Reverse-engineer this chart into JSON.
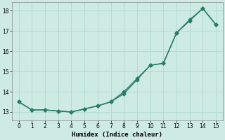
{
  "line1_x": [
    0,
    1,
    2,
    3,
    4,
    5,
    6,
    7,
    8,
    9,
    10,
    11,
    12,
    13,
    14,
    15
  ],
  "line1_y": [
    13.5,
    13.1,
    13.1,
    13.05,
    13.0,
    13.15,
    13.3,
    13.5,
    13.9,
    14.6,
    15.3,
    15.4,
    16.9,
    17.5,
    18.1,
    17.3
  ],
  "line2_x": [
    0,
    1,
    2,
    3,
    4,
    5,
    6,
    7,
    8,
    9,
    10,
    11,
    12,
    13,
    14,
    15
  ],
  "line2_y": [
    13.5,
    13.1,
    13.1,
    13.05,
    13.0,
    13.15,
    13.3,
    13.5,
    14.0,
    14.65,
    15.3,
    15.4,
    16.9,
    17.55,
    18.1,
    17.3
  ],
  "xlabel": "Humidex (Indice chaleur)",
  "ylim_min": 12.6,
  "ylim_max": 18.4,
  "xlim_min": -0.5,
  "xlim_max": 15.5,
  "yticks": [
    13,
    14,
    15,
    16,
    17,
    18
  ],
  "xticks": [
    0,
    1,
    2,
    3,
    4,
    5,
    6,
    7,
    8,
    9,
    10,
    11,
    12,
    13,
    14,
    15
  ],
  "line_color": "#2a7a6a",
  "marker": "D",
  "marker_size": 2.5,
  "bg_color": "#cdeae5",
  "grid_color": "#afd8d0",
  "line_width": 1.0,
  "fig_width": 3.2,
  "fig_height": 2.0,
  "dpi": 100
}
